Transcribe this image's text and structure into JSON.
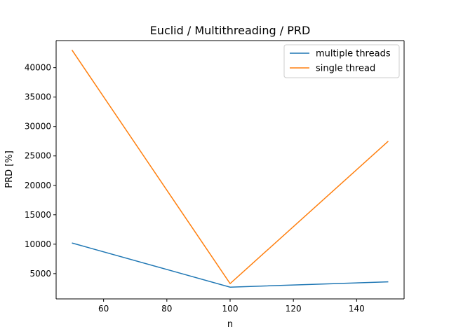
{
  "chart_data": {
    "type": "line",
    "title": "Euclid / Multithreading / PRD",
    "xlabel": "n",
    "ylabel": "PRD [%]",
    "xlim": [
      45,
      155
    ],
    "ylim": [
      700,
      44600
    ],
    "xticks": [
      60,
      80,
      100,
      120,
      140
    ],
    "yticks": [
      5000,
      10000,
      15000,
      20000,
      25000,
      30000,
      35000,
      40000
    ],
    "x": [
      50,
      100,
      150
    ],
    "series": [
      {
        "name": "multiple threads",
        "color": "#1f77b4",
        "values": [
          10200,
          2700,
          3600
        ]
      },
      {
        "name": "single thread",
        "color": "#ff7f0e",
        "values": [
          43000,
          3300,
          27500
        ]
      }
    ],
    "legend": "top-right",
    "grid": false
  }
}
